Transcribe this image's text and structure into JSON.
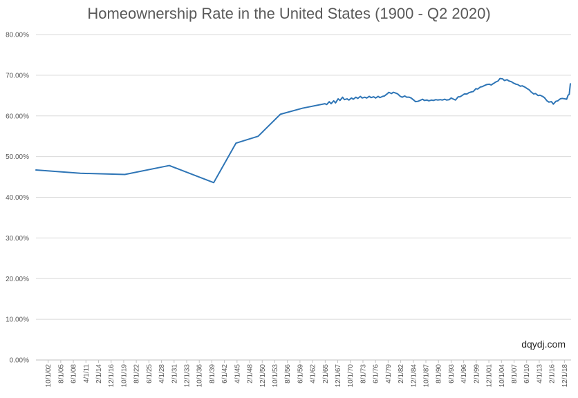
{
  "chart_data": {
    "type": "line",
    "title": "Homeownership Rate in the United States (1900 - Q2 2020)",
    "xlabel": "",
    "ylabel": "",
    "ylim": [
      0,
      80
    ],
    "y_ticks": [
      "0.00%",
      "10.00%",
      "20.00%",
      "30.00%",
      "40.00%",
      "50.00%",
      "60.00%",
      "70.00%",
      "80.00%"
    ],
    "grid": true,
    "legend": "none",
    "x_ticks": [
      {
        "date": "1902-10-01",
        "label": "10/1/02"
      },
      {
        "date": "1905-08-01",
        "label": "8/1/05"
      },
      {
        "date": "1908-06-01",
        "label": "6/1/08"
      },
      {
        "date": "1911-04-01",
        "label": "4/1/11"
      },
      {
        "date": "1914-02-01",
        "label": "2/1/14"
      },
      {
        "date": "1916-12-01",
        "label": "12/1/16"
      },
      {
        "date": "1919-10-01",
        "label": "10/1/19"
      },
      {
        "date": "1922-08-01",
        "label": "8/1/22"
      },
      {
        "date": "1925-06-01",
        "label": "6/1/25"
      },
      {
        "date": "1928-04-01",
        "label": "4/1/28"
      },
      {
        "date": "1931-02-01",
        "label": "2/1/31"
      },
      {
        "date": "1933-12-01",
        "label": "12/1/33"
      },
      {
        "date": "1936-10-01",
        "label": "10/1/36"
      },
      {
        "date": "1939-08-01",
        "label": "8/1/39"
      },
      {
        "date": "1942-06-01",
        "label": "6/1/42"
      },
      {
        "date": "1945-04-01",
        "label": "4/1/45"
      },
      {
        "date": "1948-02-01",
        "label": "2/1/48"
      },
      {
        "date": "1950-12-01",
        "label": "12/1/50"
      },
      {
        "date": "1953-10-01",
        "label": "10/1/53"
      },
      {
        "date": "1956-08-01",
        "label": "8/1/56"
      },
      {
        "date": "1959-06-01",
        "label": "6/1/59"
      },
      {
        "date": "1962-04-01",
        "label": "4/1/62"
      },
      {
        "date": "1965-02-01",
        "label": "2/1/65"
      },
      {
        "date": "1967-12-01",
        "label": "12/1/67"
      },
      {
        "date": "1970-10-01",
        "label": "10/1/70"
      },
      {
        "date": "1973-08-01",
        "label": "8/1/73"
      },
      {
        "date": "1976-06-01",
        "label": "6/1/76"
      },
      {
        "date": "1979-04-01",
        "label": "4/1/79"
      },
      {
        "date": "1982-02-01",
        "label": "2/1/82"
      },
      {
        "date": "1984-12-01",
        "label": "12/1/84"
      },
      {
        "date": "1987-10-01",
        "label": "10/1/87"
      },
      {
        "date": "1990-08-01",
        "label": "8/1/90"
      },
      {
        "date": "1993-06-01",
        "label": "6/1/93"
      },
      {
        "date": "1996-04-01",
        "label": "4/1/96"
      },
      {
        "date": "1999-02-01",
        "label": "2/1/99"
      },
      {
        "date": "2001-12-01",
        "label": "12/1/01"
      },
      {
        "date": "2004-10-01",
        "label": "10/1/04"
      },
      {
        "date": "2007-08-01",
        "label": "8/1/07"
      },
      {
        "date": "2010-06-01",
        "label": "6/1/10"
      },
      {
        "date": "2013-04-01",
        "label": "4/1/13"
      },
      {
        "date": "2016-02-01",
        "label": "2/1/16"
      },
      {
        "date": "2018-12-01",
        "label": "12/1/18"
      }
    ],
    "x_range": [
      "1900-01-01",
      "2020-06-01"
    ],
    "series": [
      {
        "name": "",
        "color": "#2e75b6",
        "points": [
          [
            "1900-01-01",
            46.7
          ],
          [
            "1910-01-01",
            45.9
          ],
          [
            "1920-01-01",
            45.6
          ],
          [
            "1930-01-01",
            47.8
          ],
          [
            "1940-01-01",
            43.6
          ],
          [
            "1945-01-01",
            53.3
          ],
          [
            "1950-01-01",
            55.0
          ],
          [
            "1955-01-01",
            60.4
          ],
          [
            "1960-01-01",
            61.9
          ],
          [
            "1965-01-01",
            63.0
          ],
          [
            "1965-06-01",
            62.8
          ],
          [
            "1966-01-01",
            63.5
          ],
          [
            "1966-06-01",
            63.0
          ],
          [
            "1967-01-01",
            63.7
          ],
          [
            "1967-06-01",
            63.2
          ],
          [
            "1968-01-01",
            64.2
          ],
          [
            "1968-06-01",
            63.8
          ],
          [
            "1969-01-01",
            64.6
          ],
          [
            "1969-06-01",
            64.0
          ],
          [
            "1970-01-01",
            64.2
          ],
          [
            "1970-06-01",
            63.9
          ],
          [
            "1971-01-01",
            64.4
          ],
          [
            "1971-06-01",
            64.1
          ],
          [
            "1972-01-01",
            64.6
          ],
          [
            "1972-06-01",
            64.3
          ],
          [
            "1973-01-01",
            64.8
          ],
          [
            "1973-06-01",
            64.4
          ],
          [
            "1974-01-01",
            64.6
          ],
          [
            "1974-06-01",
            64.4
          ],
          [
            "1975-01-01",
            64.8
          ],
          [
            "1975-06-01",
            64.5
          ],
          [
            "1976-01-01",
            64.7
          ],
          [
            "1976-06-01",
            64.4
          ],
          [
            "1977-01-01",
            64.8
          ],
          [
            "1977-06-01",
            64.5
          ],
          [
            "1978-01-01",
            64.8
          ],
          [
            "1978-06-01",
            64.9
          ],
          [
            "1979-01-01",
            65.4
          ],
          [
            "1979-06-01",
            65.8
          ],
          [
            "1980-01-01",
            65.5
          ],
          [
            "1980-06-01",
            65.8
          ],
          [
            "1981-01-01",
            65.6
          ],
          [
            "1981-06-01",
            65.4
          ],
          [
            "1982-01-01",
            64.8
          ],
          [
            "1982-06-01",
            64.6
          ],
          [
            "1983-01-01",
            64.9
          ],
          [
            "1983-06-01",
            64.6
          ],
          [
            "1984-01-01",
            64.6
          ],
          [
            "1984-06-01",
            64.4
          ],
          [
            "1985-01-01",
            63.9
          ],
          [
            "1985-06-01",
            63.5
          ],
          [
            "1986-01-01",
            63.6
          ],
          [
            "1986-06-01",
            63.8
          ],
          [
            "1987-01-01",
            64.1
          ],
          [
            "1987-06-01",
            63.8
          ],
          [
            "1988-01-01",
            63.9
          ],
          [
            "1988-06-01",
            63.7
          ],
          [
            "1989-01-01",
            63.9
          ],
          [
            "1989-06-01",
            63.8
          ],
          [
            "1990-01-01",
            64.0
          ],
          [
            "1990-06-01",
            63.9
          ],
          [
            "1991-01-01",
            64.0
          ],
          [
            "1991-06-01",
            63.9
          ],
          [
            "1992-01-01",
            64.1
          ],
          [
            "1992-06-01",
            63.9
          ],
          [
            "1993-01-01",
            64.0
          ],
          [
            "1993-06-01",
            64.4
          ],
          [
            "1994-01-01",
            64.1
          ],
          [
            "1994-06-01",
            63.9
          ],
          [
            "1995-01-01",
            64.7
          ],
          [
            "1995-06-01",
            64.7
          ],
          [
            "1996-01-01",
            65.1
          ],
          [
            "1996-06-01",
            65.4
          ],
          [
            "1997-01-01",
            65.4
          ],
          [
            "1997-06-01",
            65.7
          ],
          [
            "1998-01-01",
            65.9
          ],
          [
            "1998-06-01",
            66.0
          ],
          [
            "1999-01-01",
            66.7
          ],
          [
            "1999-06-01",
            66.6
          ],
          [
            "2000-01-01",
            67.1
          ],
          [
            "2000-06-01",
            67.2
          ],
          [
            "2001-01-01",
            67.5
          ],
          [
            "2001-06-01",
            67.7
          ],
          [
            "2002-01-01",
            67.8
          ],
          [
            "2002-06-01",
            67.6
          ],
          [
            "2003-01-01",
            68.0
          ],
          [
            "2003-06-01",
            68.3
          ],
          [
            "2004-01-01",
            68.6
          ],
          [
            "2004-06-01",
            69.2
          ],
          [
            "2005-01-01",
            69.1
          ],
          [
            "2005-06-01",
            68.7
          ],
          [
            "2006-01-01",
            68.9
          ],
          [
            "2006-06-01",
            68.6
          ],
          [
            "2007-01-01",
            68.4
          ],
          [
            "2007-06-01",
            68.1
          ],
          [
            "2008-01-01",
            67.8
          ],
          [
            "2008-06-01",
            67.7
          ],
          [
            "2009-01-01",
            67.3
          ],
          [
            "2009-06-01",
            67.4
          ],
          [
            "2010-01-01",
            67.1
          ],
          [
            "2010-06-01",
            66.8
          ],
          [
            "2011-01-01",
            66.4
          ],
          [
            "2011-06-01",
            65.9
          ],
          [
            "2012-01-01",
            65.4
          ],
          [
            "2012-06-01",
            65.5
          ],
          [
            "2013-01-01",
            65.0
          ],
          [
            "2013-06-01",
            65.1
          ],
          [
            "2014-01-01",
            64.8
          ],
          [
            "2014-06-01",
            64.5
          ],
          [
            "2015-01-01",
            63.7
          ],
          [
            "2015-06-01",
            63.4
          ],
          [
            "2016-01-01",
            63.5
          ],
          [
            "2016-06-01",
            62.9
          ],
          [
            "2017-01-01",
            63.6
          ],
          [
            "2017-06-01",
            63.7
          ],
          [
            "2018-01-01",
            64.2
          ],
          [
            "2018-06-01",
            64.3
          ],
          [
            "2019-01-01",
            64.2
          ],
          [
            "2019-06-01",
            64.1
          ],
          [
            "2019-10-01",
            65.1
          ],
          [
            "2020-01-01",
            65.3
          ],
          [
            "2020-04-01",
            67.9
          ]
        ]
      }
    ],
    "watermark": "dqydj.com"
  }
}
